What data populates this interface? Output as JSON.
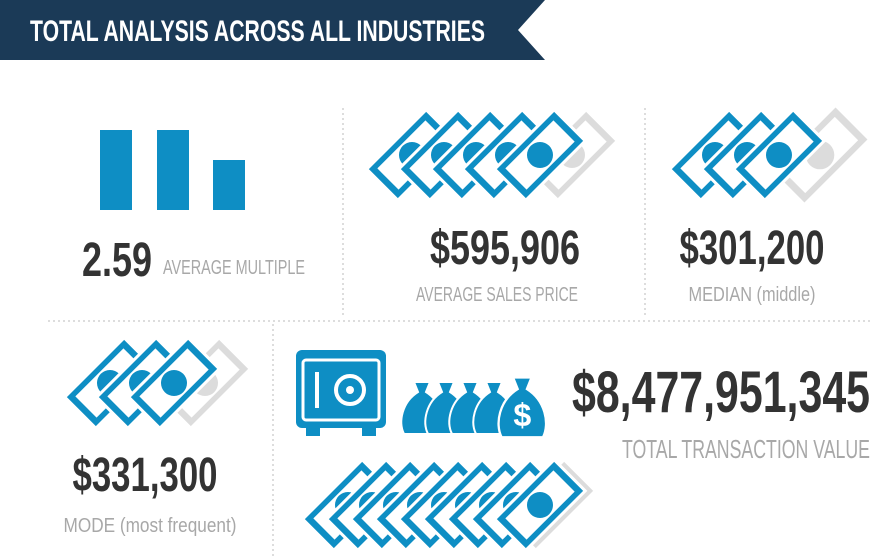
{
  "header": {
    "title": "TOTAL ANALYSIS ACROSS ALL INDUSTRIES"
  },
  "stats": [
    {
      "value": "2.59",
      "label": "AVERAGE MULTIPLE"
    },
    {
      "value": "$595,906",
      "label": "AVERAGE SALES PRICE"
    },
    {
      "value": "$301,200",
      "label": "MEDIAN (middle)"
    },
    {
      "value": "$331,300",
      "label": "MODE (most frequent)"
    },
    {
      "value": "$8,477,951,345",
      "label": "TOTAL TRANSACTION VALUE"
    }
  ]
}
